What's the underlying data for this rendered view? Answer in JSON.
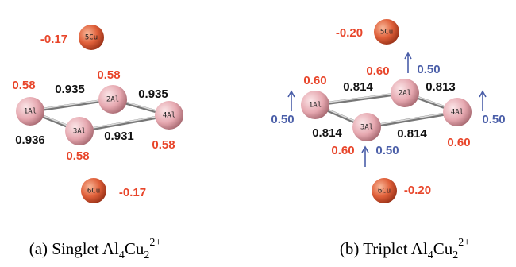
{
  "panels": [
    {
      "atoms": [
        {
          "label": "1Al",
          "charge": "0.58"
        },
        {
          "label": "2Al",
          "charge": "0.58"
        },
        {
          "label": "3Al",
          "charge": "0.58"
        },
        {
          "label": "4Al",
          "charge": "0.58"
        },
        {
          "label": "5Cu",
          "charge": "-0.17"
        },
        {
          "label": "6Cu",
          "charge": "-0.17"
        }
      ],
      "bonds": [
        "0.935",
        "0.935",
        "0.936",
        "0.931"
      ],
      "spins": [],
      "caption": {
        "text": "(a) Singlet Al",
        "sub1": "4",
        "mid": "Cu",
        "sub2": "2",
        "sup": "2+"
      }
    },
    {
      "atoms": [
        {
          "label": "1Al",
          "charge": "0.60"
        },
        {
          "label": "2Al",
          "charge": "0.60"
        },
        {
          "label": "3Al",
          "charge": "0.60"
        },
        {
          "label": "4Al",
          "charge": "0.60"
        },
        {
          "label": "5Cu",
          "charge": "-0.20"
        },
        {
          "label": "6Cu",
          "charge": "-0.20"
        }
      ],
      "bonds": [
        "0.814",
        "0.813",
        "0.814",
        "0.814"
      ],
      "spins": [
        "0.50",
        "0.50",
        "0.50",
        "0.50"
      ],
      "caption": {
        "text": "(b) Triplet Al",
        "sub1": "4",
        "mid": "Cu",
        "sub2": "2",
        "sup": "2+"
      }
    }
  ]
}
